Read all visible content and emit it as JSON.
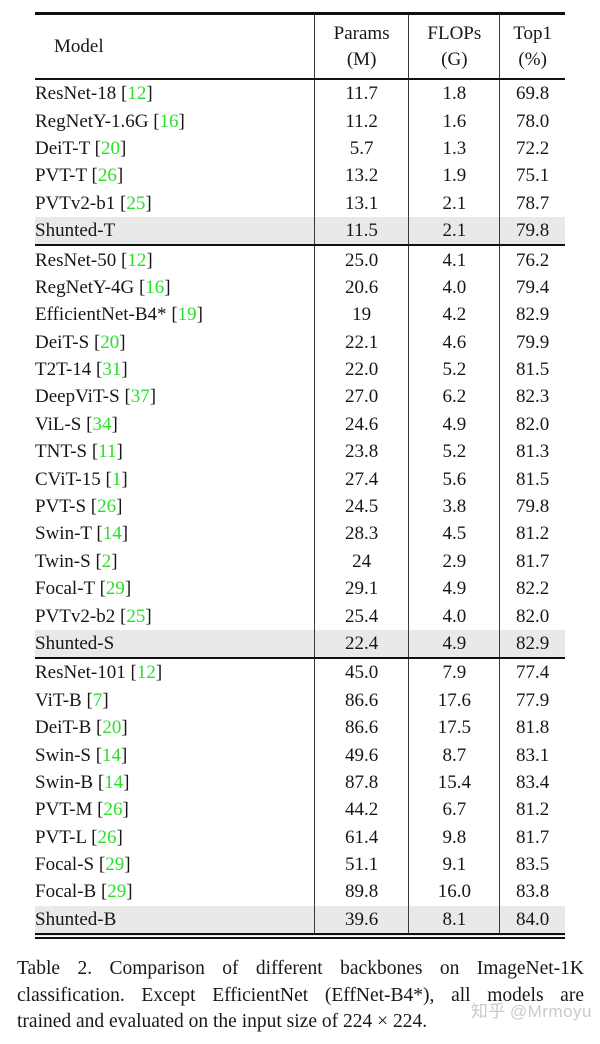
{
  "colors": {
    "reference_green": "#2ade2a",
    "highlight_row_bg": "#e9e9e9",
    "rule_color": "#101010",
    "watermark_gray": "#c9cacb"
  },
  "table": {
    "headers": [
      {
        "line1": "Model",
        "line2": ""
      },
      {
        "line1": "Params",
        "line2": "(M)"
      },
      {
        "line1": "FLOPs",
        "line2": "(G)"
      },
      {
        "line1": "Top1",
        "line2": "(%)"
      }
    ],
    "sections": [
      {
        "rows": [
          {
            "model": "ResNet-18",
            "ref": "12",
            "params": "11.7",
            "flops": "1.8",
            "top1": "69.8",
            "highlight": false,
            "top1_bold": false
          },
          {
            "model": "RegNetY-1.6G",
            "ref": "16",
            "params": "11.2",
            "flops": "1.6",
            "top1": "78.0",
            "highlight": false,
            "top1_bold": false
          },
          {
            "model": "DeiT-T",
            "ref": "20",
            "params": "5.7",
            "flops": "1.3",
            "top1": "72.2",
            "highlight": false,
            "top1_bold": false
          },
          {
            "model": "PVT-T",
            "ref": "26",
            "params": "13.2",
            "flops": "1.9",
            "top1": "75.1",
            "highlight": false,
            "top1_bold": false
          },
          {
            "model": "PVTv2-b1",
            "ref": "25",
            "params": "13.1",
            "flops": "2.1",
            "top1": "78.7",
            "highlight": false,
            "top1_bold": false
          },
          {
            "model": "Shunted-T",
            "ref": null,
            "params": "11.5",
            "flops": "2.1",
            "top1": "79.8",
            "highlight": true,
            "top1_bold": true
          }
        ]
      },
      {
        "rows": [
          {
            "model": "ResNet-50",
            "ref": "12",
            "params": "25.0",
            "flops": "4.1",
            "top1": "76.2",
            "highlight": false,
            "top1_bold": false
          },
          {
            "model": "RegNetY-4G",
            "ref": "16",
            "params": "20.6",
            "flops": "4.0",
            "top1": "79.4",
            "highlight": false,
            "top1_bold": false
          },
          {
            "model": "EfficientNet-B4*",
            "ref": "19",
            "params": "19",
            "flops": "4.2",
            "top1": "82.9",
            "highlight": false,
            "top1_bold": false
          },
          {
            "model": "DeiT-S",
            "ref": "20",
            "params": "22.1",
            "flops": "4.6",
            "top1": "79.9",
            "highlight": false,
            "top1_bold": false
          },
          {
            "model": "T2T-14",
            "ref": "31",
            "params": "22.0",
            "flops": "5.2",
            "top1": "81.5",
            "highlight": false,
            "top1_bold": false
          },
          {
            "model": "DeepViT-S",
            "ref": "37",
            "params": "27.0",
            "flops": "6.2",
            "top1": "82.3",
            "highlight": false,
            "top1_bold": false
          },
          {
            "model": "ViL-S",
            "ref": "34",
            "params": "24.6",
            "flops": "4.9",
            "top1": "82.0",
            "highlight": false,
            "top1_bold": false
          },
          {
            "model": "TNT-S",
            "ref": "11",
            "params": "23.8",
            "flops": "5.2",
            "top1": "81.3",
            "highlight": false,
            "top1_bold": false
          },
          {
            "model": "CViT-15",
            "ref": "1",
            "params": "27.4",
            "flops": "5.6",
            "top1": "81.5",
            "highlight": false,
            "top1_bold": false
          },
          {
            "model": "PVT-S",
            "ref": "26",
            "params": "24.5",
            "flops": "3.8",
            "top1": "79.8",
            "highlight": false,
            "top1_bold": false
          },
          {
            "model": "Swin-T",
            "ref": "14",
            "params": "28.3",
            "flops": "4.5",
            "top1": "81.2",
            "highlight": false,
            "top1_bold": false
          },
          {
            "model": "Twin-S",
            "ref": "2",
            "params": "24",
            "flops": "2.9",
            "top1": "81.7",
            "highlight": false,
            "top1_bold": false
          },
          {
            "model": "Focal-T",
            "ref": "29",
            "params": "29.1",
            "flops": "4.9",
            "top1": "82.2",
            "highlight": false,
            "top1_bold": false
          },
          {
            "model": "PVTv2-b2",
            "ref": "25",
            "params": "25.4",
            "flops": "4.0",
            "top1": "82.0",
            "highlight": false,
            "top1_bold": false
          },
          {
            "model": "Shunted-S",
            "ref": null,
            "params": "22.4",
            "flops": "4.9",
            "top1": "82.9",
            "highlight": true,
            "top1_bold": true
          }
        ]
      },
      {
        "rows": [
          {
            "model": "ResNet-101",
            "ref": "12",
            "params": "45.0",
            "flops": "7.9",
            "top1": "77.4",
            "highlight": false,
            "top1_bold": false
          },
          {
            "model": "ViT-B",
            "ref": "7",
            "params": "86.6",
            "flops": "17.6",
            "top1": "77.9",
            "highlight": false,
            "top1_bold": false
          },
          {
            "model": "DeiT-B",
            "ref": "20",
            "params": "86.6",
            "flops": "17.5",
            "top1": "81.8",
            "highlight": false,
            "top1_bold": false
          },
          {
            "model": "Swin-S",
            "ref": "14",
            "params": "49.6",
            "flops": "8.7",
            "top1": "83.1",
            "highlight": false,
            "top1_bold": false
          },
          {
            "model": "Swin-B",
            "ref": "14",
            "params": "87.8",
            "flops": "15.4",
            "top1": "83.4",
            "highlight": false,
            "top1_bold": false
          },
          {
            "model": "PVT-M",
            "ref": "26",
            "params": "44.2",
            "flops": "6.7",
            "top1": "81.2",
            "highlight": false,
            "top1_bold": false
          },
          {
            "model": "PVT-L",
            "ref": "26",
            "params": "61.4",
            "flops": "9.8",
            "top1": "81.7",
            "highlight": false,
            "top1_bold": false
          },
          {
            "model": "Focal-S",
            "ref": "29",
            "params": "51.1",
            "flops": "9.1",
            "top1": "83.5",
            "highlight": false,
            "top1_bold": false
          },
          {
            "model": "Focal-B",
            "ref": "29",
            "params": "89.8",
            "flops": "16.0",
            "top1": "83.8",
            "highlight": false,
            "top1_bold": false
          },
          {
            "model": "Shunted-B",
            "ref": null,
            "params": "39.6",
            "flops": "8.1",
            "top1": "84.0",
            "highlight": true,
            "top1_bold": true
          }
        ]
      }
    ]
  },
  "caption": {
    "lines": [
      "Table 2.  Comparison of different backbones on ImageNet-1K",
      "classification.  Except EfficientNet (EffNet-B4*), all models are",
      "trained and evaluated on the input size of 224 × 224."
    ]
  },
  "watermark": {
    "logo_text": "知乎",
    "handle": "@Mrmoyu"
  }
}
